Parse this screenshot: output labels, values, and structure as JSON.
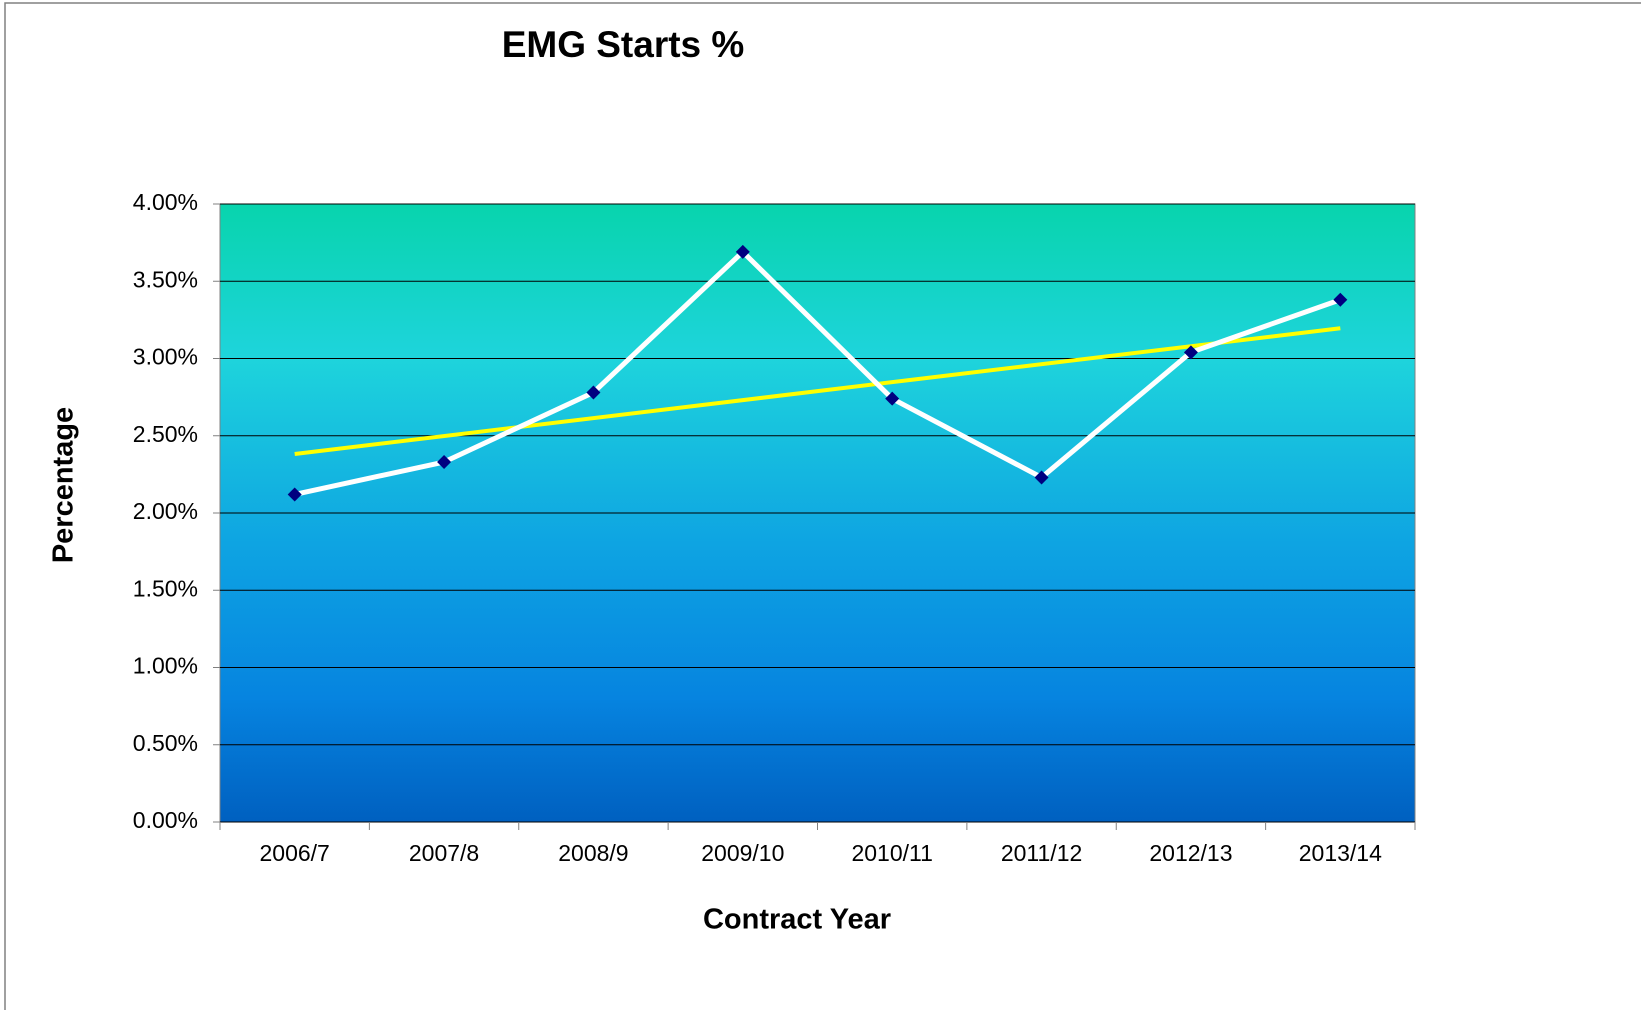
{
  "chart_data": {
    "type": "line",
    "title": "EMG Starts %",
    "x_label": "Contract Year",
    "y_label": "Percentage",
    "categories": [
      "2006/7",
      "2007/8",
      "2008/9",
      "2009/10",
      "2010/11",
      "2011/12",
      "2012/13",
      "2013/14"
    ],
    "series": [
      {
        "name": "EMG Starts %",
        "color": "#ffffff",
        "marker_color": "#000080",
        "values": [
          2.12,
          2.33,
          2.78,
          3.69,
          2.74,
          2.23,
          3.04,
          3.38
        ]
      }
    ],
    "trendline": {
      "type": "linear",
      "color": "#ffff00"
    },
    "ylim": [
      0,
      4
    ],
    "yticks": [
      {
        "value": 0,
        "label": "0.00%"
      },
      {
        "value": 0.5,
        "label": "0.50%"
      },
      {
        "value": 1,
        "label": "1.00%"
      },
      {
        "value": 1.5,
        "label": "1.50%"
      },
      {
        "value": 2,
        "label": "2.00%"
      },
      {
        "value": 2.5,
        "label": "2.50%"
      },
      {
        "value": 3,
        "label": "3.00%"
      },
      {
        "value": 3.5,
        "label": "3.50%"
      },
      {
        "value": 4,
        "label": "4.00%"
      }
    ],
    "grid": true
  }
}
